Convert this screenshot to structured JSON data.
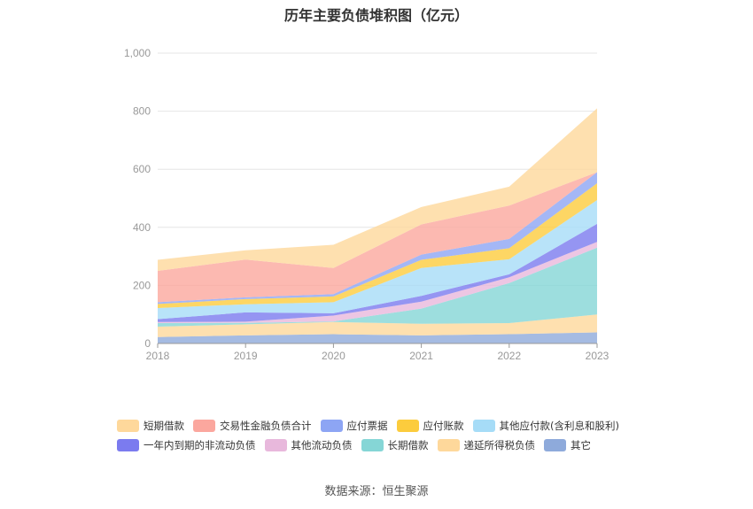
{
  "title": "历年主要负债堆积图（亿元）",
  "source": "数据来源：恒生聚源",
  "chart_data": {
    "type": "area",
    "stacked": true,
    "x": [
      "2018",
      "2019",
      "2020",
      "2021",
      "2022",
      "2023"
    ],
    "ylim": [
      0,
      1000
    ],
    "yticks": [
      "0",
      "200",
      "400",
      "600",
      "800",
      "1,000"
    ],
    "grid": true,
    "legend_position": "bottom",
    "series": [
      {
        "name": "其它",
        "color": "#8eaadb",
        "values": [
          22,
          28,
          32,
          28,
          32,
          38
        ]
      },
      {
        "name": "递延所得税负债",
        "color": "#fed89b",
        "values": [
          36,
          38,
          42,
          40,
          38,
          62
        ]
      },
      {
        "name": "长期借款",
        "color": "#85d6d6",
        "values": [
          12,
          5,
          2,
          52,
          138,
          230
        ]
      },
      {
        "name": "其他流动负债",
        "color": "#e8b8dc",
        "values": [
          4,
          4,
          20,
          24,
          20,
          20
        ]
      },
      {
        "name": "一年内到期的非流动负债",
        "color": "#7b7bef",
        "values": [
          10,
          32,
          8,
          20,
          10,
          62
        ]
      },
      {
        "name": "其他应付款(含利息和股利)",
        "color": "#a6dcf7",
        "values": [
          38,
          28,
          38,
          96,
          52,
          82
        ]
      },
      {
        "name": "应付账款",
        "color": "#fccc3d",
        "values": [
          14,
          18,
          20,
          28,
          38,
          58
        ]
      },
      {
        "name": "应付票据",
        "color": "#8da5f4",
        "values": [
          6,
          6,
          8,
          18,
          32,
          38
        ]
      },
      {
        "name": "交易性金融负债合计",
        "color": "#fba79e",
        "values": [
          108,
          130,
          90,
          104,
          115,
          0
        ]
      },
      {
        "name": "短期借款",
        "color": "#fed89b",
        "values": [
          38,
          32,
          80,
          60,
          65,
          220
        ]
      }
    ]
  },
  "legend_rows": [
    [
      {
        "label": "短期借款",
        "color": "#fed89b"
      },
      {
        "label": "交易性金融负债合计",
        "color": "#fba79e"
      },
      {
        "label": "应付票据",
        "color": "#8da5f4"
      },
      {
        "label": "应付账款",
        "color": "#fccc3d"
      },
      {
        "label": "其他应付款(含利息和股利)",
        "color": "#a6dcf7"
      }
    ],
    [
      {
        "label": "一年内到期的非流动负债",
        "color": "#7b7bef"
      },
      {
        "label": "其他流动负债",
        "color": "#e8b8dc"
      },
      {
        "label": "长期借款",
        "color": "#85d6d6"
      },
      {
        "label": "递延所得税负债",
        "color": "#fed89b"
      },
      {
        "label": "其它",
        "color": "#8eaadb"
      }
    ]
  ]
}
